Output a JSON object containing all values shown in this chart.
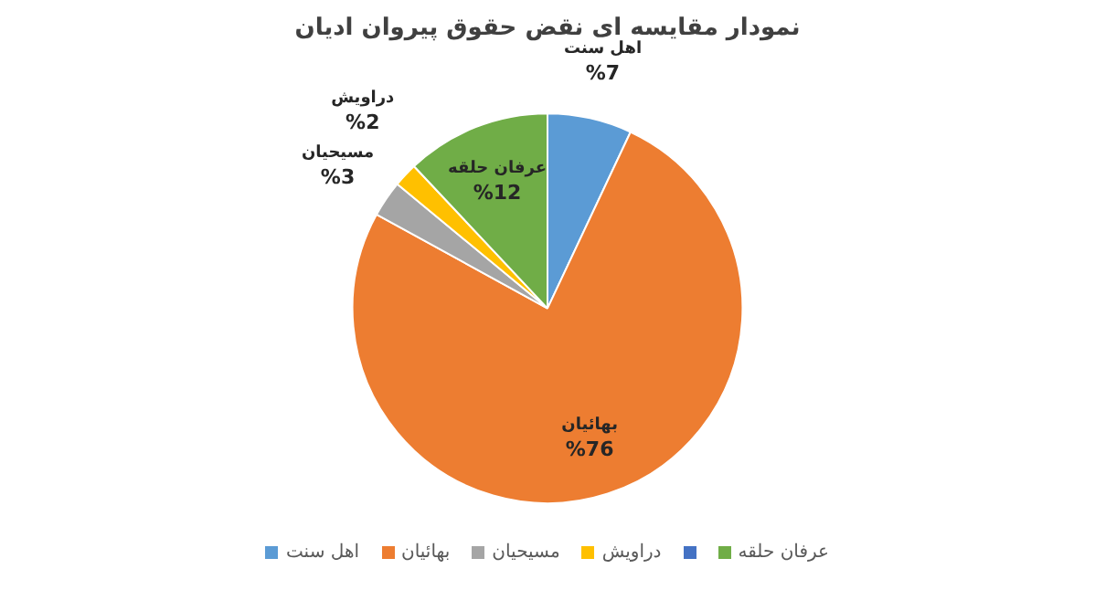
{
  "chart_data": {
    "type": "pie",
    "title": "نمودار مقایسه ای نقض حقوق پیروان ادیان",
    "categories": [
      "اهل سنت",
      "بهائیان",
      "مسیحیان",
      "دراویش",
      null,
      "عرفان حلقه"
    ],
    "values": [
      7,
      76,
      3,
      2,
      0,
      12
    ],
    "value_labels": [
      "%7",
      "%76",
      "%3",
      "%2",
      null,
      "%12"
    ],
    "colors": [
      "#5b9bd5",
      "#ed7d31",
      "#a5a5a5",
      "#ffc000",
      "#4472c4",
      "#70ad47"
    ],
    "legend": "bottom"
  }
}
